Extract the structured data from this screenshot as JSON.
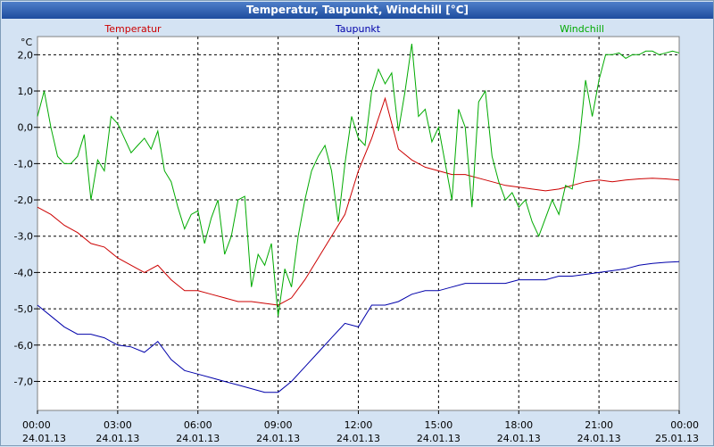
{
  "window_title": "Temperatur, Taupunkt, Windchill [°C]",
  "colors": {
    "temperatur": "#cc0000",
    "taupunkt": "#0000aa",
    "windchill": "#00aa00",
    "grid": "#000000",
    "axis_text": "#000000"
  },
  "chart_data": {
    "type": "line",
    "title": "Temperatur, Taupunkt, Windchill [°C]",
    "ylabel": "°C",
    "xlabel": "",
    "ylim": [
      -7.8,
      2.5
    ],
    "xlim": [
      0,
      24
    ],
    "grid": true,
    "y_ticks": [
      2.0,
      1.0,
      0.0,
      -1.0,
      -2.0,
      -3.0,
      -4.0,
      -5.0,
      -6.0,
      -7.0
    ],
    "y_tick_labels": [
      "2,0",
      "1,0",
      "0,0",
      "-1,0",
      "-2,0",
      "-3,0",
      "-4,0",
      "-5,0",
      "-6,0",
      "-7,0"
    ],
    "x_ticks": [
      {
        "time": "00:00",
        "date": "24.01.13"
      },
      {
        "time": "03:00",
        "date": "24.01.13"
      },
      {
        "time": "06:00",
        "date": "24.01.13"
      },
      {
        "time": "09:00",
        "date": "24.01.13"
      },
      {
        "time": "12:00",
        "date": "24.01.13"
      },
      {
        "time": "15:00",
        "date": "24.01.13"
      },
      {
        "time": "18:00",
        "date": "24.01.13"
      },
      {
        "time": "21:00",
        "date": "24.01.13"
      },
      {
        "time": "00:00",
        "date": "25.01.13"
      }
    ],
    "series": [
      {
        "name": "Temperatur",
        "legend_pos": "left",
        "color": "#cc0000",
        "x": [
          0,
          0.5,
          1,
          1.5,
          2,
          2.5,
          3,
          3.5,
          4,
          4.5,
          5,
          5.5,
          6,
          6.5,
          7,
          7.5,
          8,
          8.5,
          9,
          9.5,
          10,
          10.5,
          11,
          11.5,
          12,
          12.5,
          13,
          13.5,
          14,
          14.5,
          15,
          15.5,
          16,
          16.5,
          17,
          17.5,
          18,
          18.5,
          19,
          19.5,
          20,
          20.5,
          21,
          21.5,
          22,
          22.5,
          23,
          23.5,
          24
        ],
        "values": [
          -2.2,
          -2.4,
          -2.7,
          -2.9,
          -3.2,
          -3.3,
          -3.6,
          -3.8,
          -4.0,
          -3.8,
          -4.2,
          -4.5,
          -4.5,
          -4.6,
          -4.7,
          -4.8,
          -4.8,
          -4.85,
          -4.9,
          -4.7,
          -4.2,
          -3.6,
          -3.0,
          -2.4,
          -1.2,
          -0.3,
          0.8,
          -0.6,
          -0.9,
          -1.1,
          -1.2,
          -1.3,
          -1.3,
          -1.4,
          -1.5,
          -1.6,
          -1.65,
          -1.7,
          -1.75,
          -1.7,
          -1.6,
          -1.5,
          -1.45,
          -1.5,
          -1.45,
          -1.42,
          -1.4,
          -1.42,
          -1.45
        ]
      },
      {
        "name": "Taupunkt",
        "legend_pos": "center",
        "color": "#0000aa",
        "x": [
          0,
          0.5,
          1,
          1.5,
          2,
          2.5,
          3,
          3.5,
          4,
          4.5,
          5,
          5.5,
          6,
          6.5,
          7,
          7.5,
          8,
          8.5,
          9,
          9.5,
          10,
          10.5,
          11,
          11.5,
          12,
          12.5,
          13,
          13.5,
          14,
          14.5,
          15,
          15.5,
          16,
          16.5,
          17,
          17.5,
          18,
          18.5,
          19,
          19.5,
          20,
          20.5,
          21,
          21.5,
          22,
          22.5,
          23,
          23.5,
          24
        ],
        "values": [
          -4.9,
          -5.2,
          -5.5,
          -5.7,
          -5.7,
          -5.8,
          -6.0,
          -6.05,
          -6.2,
          -5.9,
          -6.4,
          -6.7,
          -6.8,
          -6.9,
          -7.0,
          -7.1,
          -7.2,
          -7.3,
          -7.3,
          -7.0,
          -6.6,
          -6.2,
          -5.8,
          -5.4,
          -5.5,
          -4.9,
          -4.9,
          -4.8,
          -4.6,
          -4.5,
          -4.5,
          -4.4,
          -4.3,
          -4.3,
          -4.3,
          -4.3,
          -4.2,
          -4.2,
          -4.2,
          -4.1,
          -4.1,
          -4.05,
          -4.0,
          -3.95,
          -3.9,
          -3.8,
          -3.75,
          -3.72,
          -3.7
        ]
      },
      {
        "name": "Windchill",
        "legend_pos": "right",
        "color": "#00aa00",
        "x": [
          0,
          0.25,
          0.5,
          0.75,
          1,
          1.25,
          1.5,
          1.75,
          2,
          2.25,
          2.5,
          2.75,
          3,
          3.25,
          3.5,
          3.75,
          4,
          4.25,
          4.5,
          4.75,
          5,
          5.25,
          5.5,
          5.75,
          6,
          6.25,
          6.5,
          6.75,
          7,
          7.25,
          7.5,
          7.75,
          8,
          8.25,
          8.5,
          8.75,
          9,
          9.25,
          9.5,
          9.75,
          10,
          10.25,
          10.5,
          10.75,
          11,
          11.25,
          11.5,
          11.75,
          12,
          12.25,
          12.5,
          12.75,
          13,
          13.25,
          13.5,
          13.75,
          14,
          14.25,
          14.5,
          14.75,
          15,
          15.25,
          15.5,
          15.75,
          16,
          16.25,
          16.5,
          16.75,
          17,
          17.25,
          17.5,
          17.75,
          18,
          18.25,
          18.5,
          18.75,
          19,
          19.25,
          19.5,
          19.75,
          20,
          20.25,
          20.5,
          20.75,
          21,
          21.25,
          21.5,
          21.75,
          22,
          22.25,
          22.5,
          22.75,
          23,
          23.25,
          23.5,
          23.75,
          24
        ],
        "values": [
          0.3,
          1.0,
          0.0,
          -0.8,
          -1.0,
          -1.0,
          -0.8,
          -0.2,
          -2.0,
          -0.9,
          -1.2,
          0.3,
          0.1,
          -0.3,
          -0.7,
          -0.5,
          -0.3,
          -0.6,
          -0.1,
          -1.2,
          -1.5,
          -2.2,
          -2.8,
          -2.4,
          -2.3,
          -3.2,
          -2.5,
          -2.0,
          -3.5,
          -3.0,
          -2.0,
          -1.9,
          -4.4,
          -3.5,
          -3.8,
          -3.2,
          -5.2,
          -3.9,
          -4.4,
          -3.0,
          -2.0,
          -1.2,
          -0.8,
          -0.5,
          -1.2,
          -2.6,
          -1.0,
          0.3,
          -0.3,
          -0.5,
          1.0,
          1.6,
          1.2,
          1.5,
          -0.1,
          1.0,
          2.3,
          0.3,
          0.5,
          -0.4,
          0.0,
          -1.0,
          -2.0,
          0.5,
          0.0,
          -2.2,
          0.7,
          1.0,
          -0.8,
          -1.5,
          -2.0,
          -1.8,
          -2.2,
          -2.0,
          -2.6,
          -3.0,
          -2.5,
          -2.0,
          -2.4,
          -1.6,
          -1.7,
          -0.5,
          1.3,
          0.3,
          1.3,
          2.0,
          2.0,
          2.05,
          1.9,
          2.0,
          2.0,
          2.1,
          2.1,
          2.0,
          2.05,
          2.1,
          2.05
        ]
      }
    ]
  }
}
